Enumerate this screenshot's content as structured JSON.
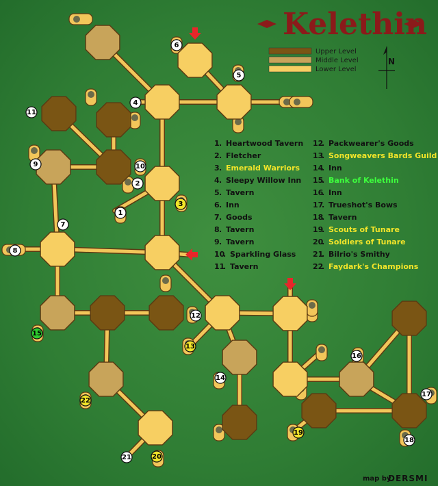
{
  "title": "Kelethin",
  "legend": {
    "items": [
      {
        "label": "Upper Level",
        "color": "#7a5514"
      },
      {
        "label": "Middle Level",
        "color": "#c8a45a"
      },
      {
        "label": "Lower Level",
        "color": "#f7cf62"
      }
    ]
  },
  "compass": {
    "label": "N"
  },
  "credit": {
    "prefix": "map by",
    "author": "DERSMI"
  },
  "locations": [
    {
      "num": "1",
      "name": "Heartwood Tavern",
      "highlight": "none"
    },
    {
      "num": "2",
      "name": "Fletcher",
      "highlight": "none"
    },
    {
      "num": "3",
      "name": "Emerald Warriors",
      "highlight": "yellow"
    },
    {
      "num": "4",
      "name": "Sleepy Willow Inn",
      "highlight": "none"
    },
    {
      "num": "5",
      "name": "Tavern",
      "highlight": "none"
    },
    {
      "num": "6",
      "name": "Inn",
      "highlight": "none"
    },
    {
      "num": "7",
      "name": "Goods",
      "highlight": "none"
    },
    {
      "num": "8",
      "name": "Tavern",
      "highlight": "none"
    },
    {
      "num": "9",
      "name": "Tavern",
      "highlight": "none"
    },
    {
      "num": "10",
      "name": "Sparkling Glass",
      "highlight": "none"
    },
    {
      "num": "11",
      "name": "Tavern",
      "highlight": "none"
    },
    {
      "num": "12",
      "name": "Packwearer's Goods",
      "highlight": "none"
    },
    {
      "num": "13",
      "name": "Songweavers Bards Guild",
      "highlight": "yellow"
    },
    {
      "num": "14",
      "name": "Inn",
      "highlight": "none"
    },
    {
      "num": "15",
      "name": "Bank of Kelethin",
      "highlight": "green"
    },
    {
      "num": "16",
      "name": "Inn",
      "highlight": "none"
    },
    {
      "num": "17",
      "name": "Trueshot's Bows",
      "highlight": "none"
    },
    {
      "num": "18",
      "name": "Tavern",
      "highlight": "none"
    },
    {
      "num": "19",
      "name": "Scouts of Tunare",
      "highlight": "yellow"
    },
    {
      "num": "20",
      "name": "Soldiers of Tunare",
      "highlight": "yellow"
    },
    {
      "num": "21",
      "name": "Bilrio's Smithy",
      "highlight": "none"
    },
    {
      "num": "22",
      "name": "Faydark's Champions",
      "highlight": "yellow"
    }
  ],
  "colors": {
    "upper": "#7a5514",
    "middle": "#c8a45a",
    "lower": "#f7cf62",
    "bridge": "#f2c65a",
    "arrow": "#e8262a",
    "badge_plain": "#ffffff",
    "badge_yellow": "#f2e42a",
    "badge_green": "#2ecc2e"
  }
}
